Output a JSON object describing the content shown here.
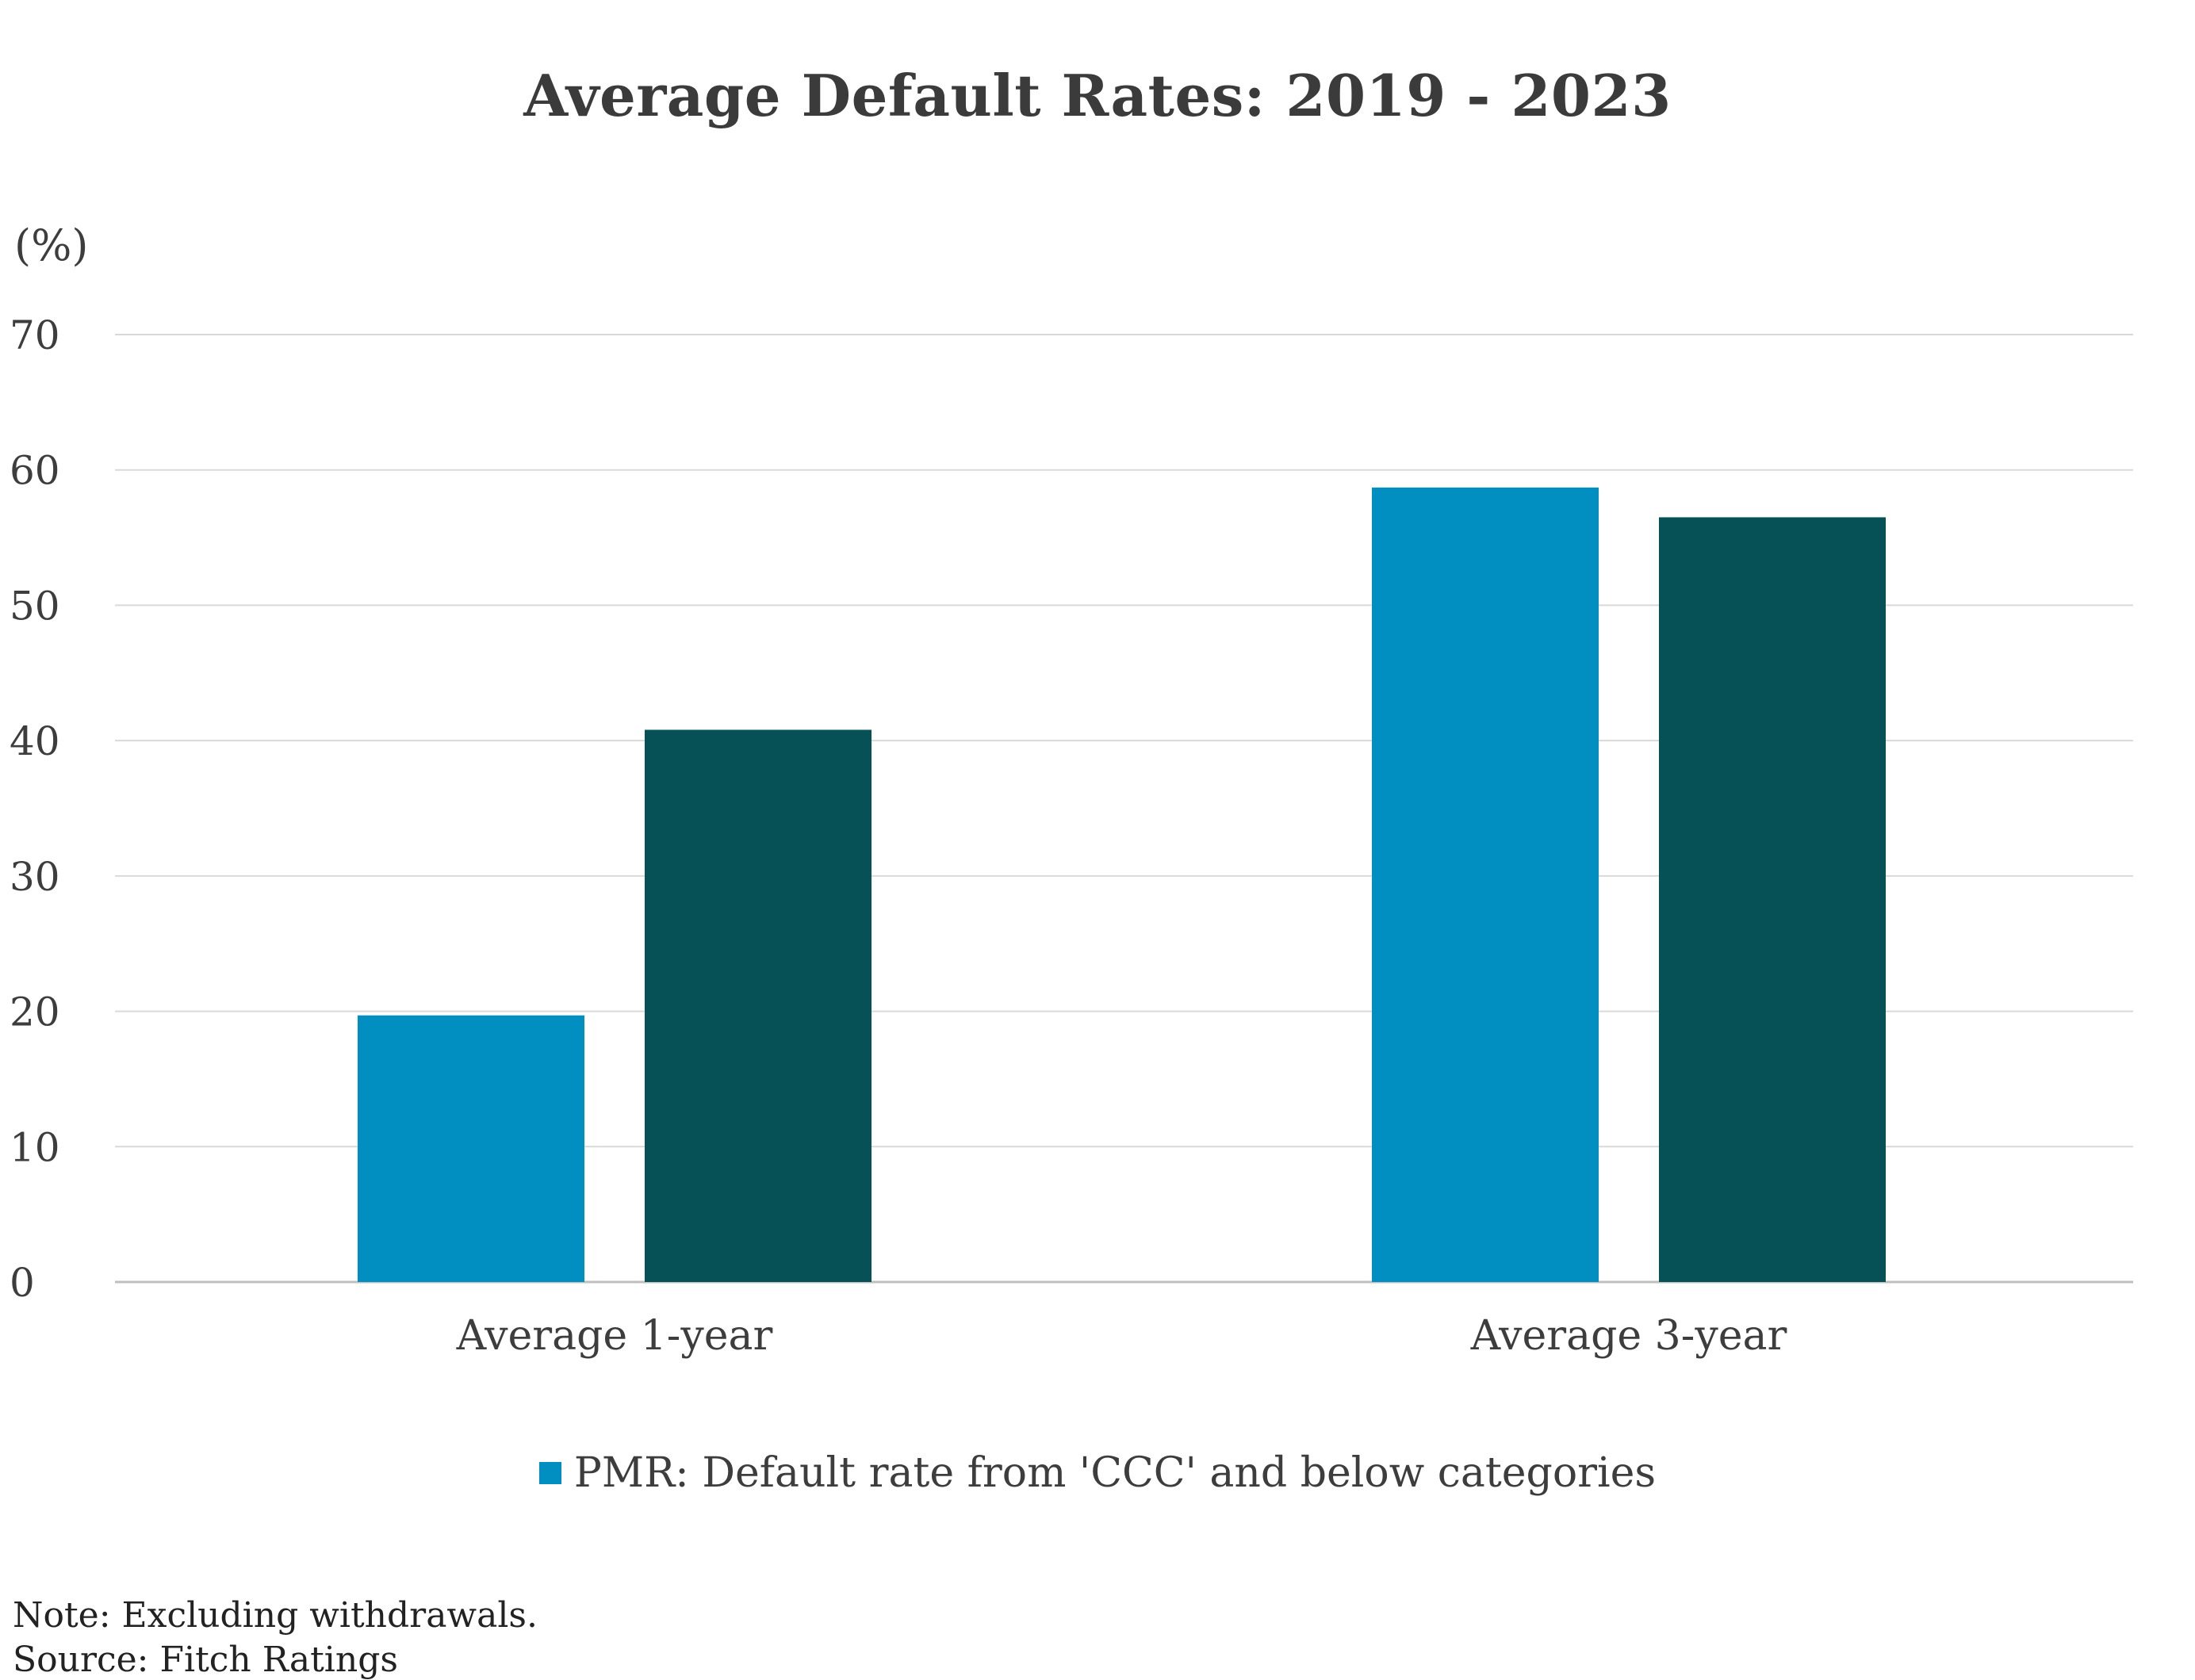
{
  "chart_data": {
    "type": "bar",
    "title": "Average Default Rates: 2019 - 2023",
    "ylabel": "(%)",
    "xlabel": "",
    "ylim": [
      0,
      70
    ],
    "yticks": [
      "0",
      "10",
      "20",
      "30",
      "40",
      "50",
      "60",
      "70"
    ],
    "categories": [
      "Average 1-year",
      "Average 3-year"
    ],
    "series": [
      {
        "name": "PMR: Default rate from 'CCC' and below categories",
        "color": "#008fc0",
        "values": [
          19.7,
          58.7
        ]
      },
      {
        "name": "",
        "color": "#065156",
        "values": [
          40.8,
          56.5
        ]
      }
    ],
    "grid": true,
    "legend": "bottom-center",
    "legend_entries": [
      "PMR: Default rate from 'CCC' and below categories"
    ]
  },
  "notes": {
    "note": "Note: Excluding withdrawals.",
    "source": "Source: Fitch Ratings"
  }
}
